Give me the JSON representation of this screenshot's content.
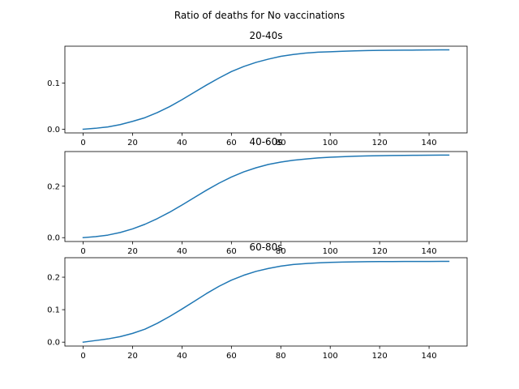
{
  "figure": {
    "suptitle": "Ratio of deaths for No vaccinations"
  },
  "chart_data": [
    {
      "type": "line",
      "title": "20-40s",
      "xlabel": "",
      "ylabel": "",
      "xlim": [
        -7.4,
        155.4
      ],
      "ylim": [
        -0.008,
        0.18
      ],
      "xticks": [
        0,
        20,
        40,
        60,
        80,
        100,
        120,
        140
      ],
      "yticks": [
        0.0,
        0.1
      ],
      "ytick_labels": [
        "0.0",
        "0.1"
      ],
      "grid": false,
      "color": "#1f77b4",
      "series": [
        {
          "x": [
            0,
            5,
            10,
            15,
            20,
            25,
            30,
            35,
            40,
            45,
            50,
            55,
            60,
            65,
            70,
            75,
            80,
            85,
            90,
            95,
            100,
            105,
            110,
            115,
            120,
            125,
            130,
            135,
            140,
            145,
            148
          ],
          "y": [
            0.0,
            0.002,
            0.005,
            0.01,
            0.017,
            0.025,
            0.036,
            0.049,
            0.064,
            0.08,
            0.096,
            0.111,
            0.125,
            0.136,
            0.145,
            0.152,
            0.158,
            0.162,
            0.165,
            0.167,
            0.168,
            0.169,
            0.17,
            0.1705,
            0.171,
            0.1712,
            0.1714,
            0.1716,
            0.1718,
            0.172,
            0.172
          ]
        }
      ]
    },
    {
      "type": "line",
      "title": "40-60s",
      "xlabel": "",
      "ylabel": "",
      "xlim": [
        -7.4,
        155.4
      ],
      "ylim": [
        -0.015,
        0.335
      ],
      "xticks": [
        0,
        20,
        40,
        60,
        80,
        100,
        120,
        140
      ],
      "yticks": [
        0.0,
        0.2
      ],
      "ytick_labels": [
        "0.0",
        "0.2"
      ],
      "grid": false,
      "color": "#1f77b4",
      "series": [
        {
          "x": [
            0,
            5,
            10,
            15,
            20,
            25,
            30,
            35,
            40,
            45,
            50,
            55,
            60,
            65,
            70,
            75,
            80,
            85,
            90,
            95,
            100,
            105,
            110,
            115,
            120,
            125,
            130,
            135,
            140,
            145,
            148
          ],
          "y": [
            0.0,
            0.004,
            0.01,
            0.02,
            0.034,
            0.052,
            0.074,
            0.099,
            0.127,
            0.156,
            0.185,
            0.212,
            0.236,
            0.256,
            0.272,
            0.285,
            0.294,
            0.301,
            0.306,
            0.31,
            0.313,
            0.315,
            0.317,
            0.318,
            0.319,
            0.3195,
            0.32,
            0.3205,
            0.321,
            0.3212,
            0.3213
          ]
        }
      ]
    },
    {
      "type": "line",
      "title": "60-80s",
      "xlabel": "",
      "ylabel": "",
      "xlim": [
        -7.4,
        155.4
      ],
      "ylim": [
        -0.012,
        0.26
      ],
      "xticks": [
        0,
        20,
        40,
        60,
        80,
        100,
        120,
        140
      ],
      "yticks": [
        0.0,
        0.1,
        0.2
      ],
      "ytick_labels": [
        "0.0",
        "0.1",
        "0.2"
      ],
      "grid": false,
      "color": "#1f77b4",
      "series": [
        {
          "x": [
            0,
            5,
            10,
            15,
            20,
            25,
            30,
            35,
            40,
            45,
            50,
            55,
            60,
            65,
            70,
            75,
            80,
            85,
            90,
            95,
            100,
            105,
            110,
            115,
            120,
            125,
            130,
            135,
            140,
            145,
            148
          ],
          "y": [
            0.0,
            0.005,
            0.01,
            0.017,
            0.027,
            0.04,
            0.058,
            0.079,
            0.102,
            0.126,
            0.15,
            0.172,
            0.191,
            0.206,
            0.218,
            0.227,
            0.234,
            0.239,
            0.242,
            0.244,
            0.2455,
            0.2465,
            0.2472,
            0.2477,
            0.248,
            0.2482,
            0.2484,
            0.2485,
            0.2486,
            0.2487,
            0.2487
          ]
        }
      ]
    }
  ]
}
